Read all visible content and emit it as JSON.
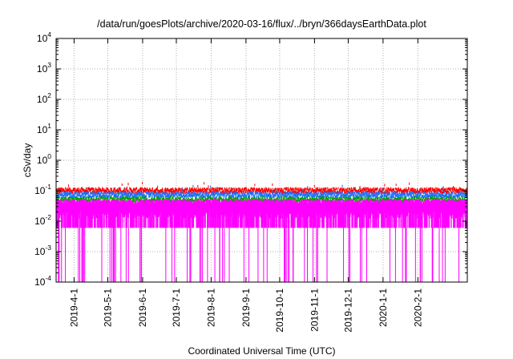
{
  "chart_data": {
    "type": "area",
    "title": "/data/run/goesPlots/archive/2020-03-16/flux/../bryn/366daysEarthData.plot",
    "xlabel": "Coordinated Universal Time (UTC)",
    "ylabel": "cSv/day",
    "yscale": "log",
    "ylim": [
      0.0001,
      10000
    ],
    "xlim": [
      "2019-03-16",
      "2020-03-16"
    ],
    "grid": true,
    "yticks": [
      {
        "value": 0.0001,
        "base": "10",
        "exp": "-4"
      },
      {
        "value": 0.001,
        "base": "10",
        "exp": "-3"
      },
      {
        "value": 0.01,
        "base": "10",
        "exp": "-2"
      },
      {
        "value": 0.1,
        "base": "10",
        "exp": "-1"
      },
      {
        "value": 1,
        "base": "10",
        "exp": "0"
      },
      {
        "value": 10,
        "base": "10",
        "exp": "1"
      },
      {
        "value": 100,
        "base": "10",
        "exp": "2"
      },
      {
        "value": 1000,
        "base": "10",
        "exp": "3"
      },
      {
        "value": 10000,
        "base": "10",
        "exp": "4"
      }
    ],
    "xticks": [
      "2019-4-1",
      "2019-5-1",
      "2019-6-1",
      "2019-7-1",
      "2019-8-1",
      "2019-9-1",
      "2019-10-1",
      "2019-11-1",
      "2019-12-1",
      "2020-1-1",
      "2020-2-1"
    ],
    "series": [
      {
        "color": "#ff0000",
        "typical": 0.11,
        "range": [
          0.085,
          0.2
        ]
      },
      {
        "color": "#1e6fff",
        "typical": 0.08,
        "range": [
          0.055,
          0.16
        ]
      },
      {
        "color": "#00a000",
        "typical": 0.055,
        "range": [
          0.04,
          0.09
        ]
      },
      {
        "color": "#ff00ff",
        "typical": 0.045,
        "range": [
          0.0001,
          0.06
        ]
      }
    ]
  }
}
